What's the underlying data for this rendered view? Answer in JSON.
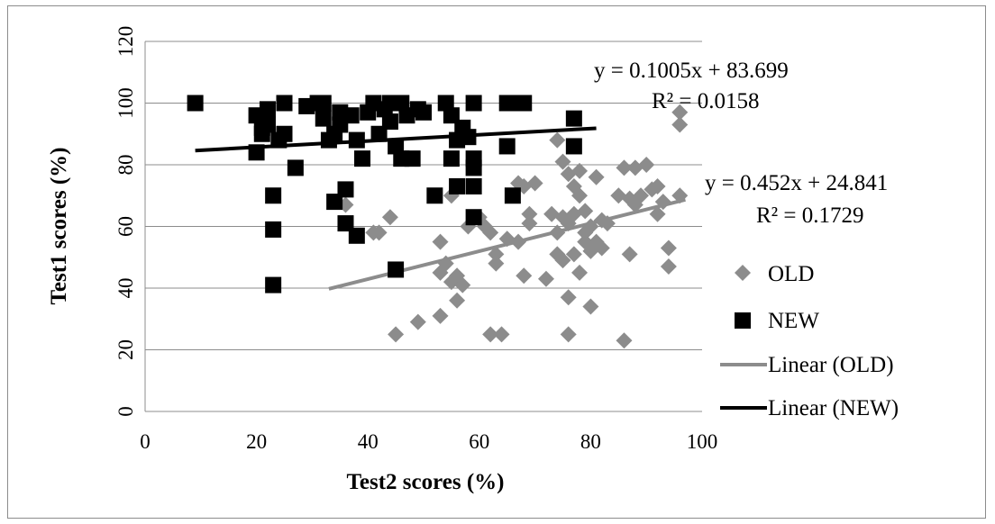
{
  "chart_data": {
    "type": "scatter",
    "xlabel": "Test2 scores (%)",
    "ylabel": "Test1 scores (%)",
    "xlim": [
      0,
      100
    ],
    "ylim": [
      0,
      120
    ],
    "x_ticks": [
      "0",
      "20",
      "40",
      "60",
      "80",
      "100"
    ],
    "y_ticks": [
      "0",
      "20",
      "40",
      "60",
      "80",
      "100",
      "120"
    ],
    "grid": "horizontal",
    "legend_position": "right",
    "series": [
      {
        "name": "OLD",
        "marker": "diamond",
        "color": "#8c8c8c",
        "points": [
          [
            36,
            67
          ],
          [
            41,
            58
          ],
          [
            42,
            58
          ],
          [
            44,
            63
          ],
          [
            45,
            25
          ],
          [
            49,
            29
          ],
          [
            53,
            55
          ],
          [
            53,
            31
          ],
          [
            53,
            45
          ],
          [
            54,
            48
          ],
          [
            55,
            42
          ],
          [
            55,
            70
          ],
          [
            56,
            44
          ],
          [
            56,
            36
          ],
          [
            57,
            41
          ],
          [
            58,
            60
          ],
          [
            60,
            63
          ],
          [
            61,
            60
          ],
          [
            62,
            58
          ],
          [
            62,
            25
          ],
          [
            63,
            48
          ],
          [
            63,
            51
          ],
          [
            64,
            25
          ],
          [
            65,
            56
          ],
          [
            67,
            55
          ],
          [
            67,
            74
          ],
          [
            68,
            44
          ],
          [
            68,
            73
          ],
          [
            69,
            64
          ],
          [
            69,
            61
          ],
          [
            70,
            74
          ],
          [
            72,
            43
          ],
          [
            73,
            64
          ],
          [
            74,
            51
          ],
          [
            74,
            58
          ],
          [
            74,
            88
          ],
          [
            75,
            63
          ],
          [
            75,
            49
          ],
          [
            75,
            81
          ],
          [
            76,
            77
          ],
          [
            76,
            61
          ],
          [
            76,
            37
          ],
          [
            76,
            25
          ],
          [
            77,
            73
          ],
          [
            77,
            51
          ],
          [
            77,
            64
          ],
          [
            78,
            45
          ],
          [
            78,
            78
          ],
          [
            78,
            70
          ],
          [
            79,
            58
          ],
          [
            79,
            55
          ],
          [
            79,
            65
          ],
          [
            80,
            60
          ],
          [
            80,
            52
          ],
          [
            80,
            34
          ],
          [
            81,
            76
          ],
          [
            81,
            55
          ],
          [
            82,
            62
          ],
          [
            82,
            53
          ],
          [
            83,
            61
          ],
          [
            85,
            70
          ],
          [
            86,
            23
          ],
          [
            86,
            79
          ],
          [
            87,
            51
          ],
          [
            87,
            69
          ],
          [
            88,
            67
          ],
          [
            88,
            79
          ],
          [
            89,
            70
          ],
          [
            90,
            80
          ],
          [
            91,
            72
          ],
          [
            92,
            64
          ],
          [
            92,
            73
          ],
          [
            93,
            68
          ],
          [
            94,
            47
          ],
          [
            94,
            53
          ],
          [
            96,
            97
          ],
          [
            96,
            93
          ],
          [
            96,
            70
          ]
        ]
      },
      {
        "name": "NEW",
        "marker": "square",
        "color": "#000000",
        "points": [
          [
            9,
            100
          ],
          [
            20,
            84
          ],
          [
            20,
            96
          ],
          [
            21,
            90
          ],
          [
            21,
            92
          ],
          [
            22,
            98
          ],
          [
            22,
            93
          ],
          [
            23,
            70
          ],
          [
            23,
            59
          ],
          [
            23,
            41
          ],
          [
            24,
            88
          ],
          [
            25,
            100
          ],
          [
            25,
            90
          ],
          [
            27,
            79
          ],
          [
            29,
            99
          ],
          [
            31,
            100
          ],
          [
            32,
            100
          ],
          [
            32,
            95
          ],
          [
            33,
            88
          ],
          [
            34,
            68
          ],
          [
            34,
            90
          ],
          [
            35,
            93
          ],
          [
            35,
            97
          ],
          [
            36,
            72
          ],
          [
            36,
            61
          ],
          [
            37,
            96
          ],
          [
            38,
            88
          ],
          [
            38,
            57
          ],
          [
            39,
            82
          ],
          [
            40,
            97
          ],
          [
            41,
            100
          ],
          [
            42,
            90
          ],
          [
            43,
            98
          ],
          [
            44,
            100
          ],
          [
            44,
            94
          ],
          [
            45,
            86
          ],
          [
            45,
            46
          ],
          [
            46,
            100
          ],
          [
            46,
            82
          ],
          [
            47,
            96
          ],
          [
            48,
            82
          ],
          [
            49,
            98
          ],
          [
            50,
            97
          ],
          [
            52,
            70
          ],
          [
            54,
            100
          ],
          [
            55,
            96
          ],
          [
            55,
            82
          ],
          [
            56,
            73
          ],
          [
            56,
            88
          ],
          [
            57,
            92
          ],
          [
            58,
            89
          ],
          [
            59,
            100
          ],
          [
            59,
            82
          ],
          [
            59,
            79
          ],
          [
            59,
            73
          ],
          [
            59,
            63
          ],
          [
            65,
            100
          ],
          [
            65,
            86
          ],
          [
            66,
            70
          ],
          [
            67,
            100
          ],
          [
            68,
            100
          ],
          [
            77,
            95
          ],
          [
            77,
            86
          ]
        ]
      }
    ],
    "trendlines": [
      {
        "name": "Linear (OLD)",
        "series": "OLD",
        "slope": 0.452,
        "intercept": 24.841,
        "x_range": [
          33,
          97
        ],
        "color": "#8c8c8c",
        "equation": "y = 0.452x + 24.841",
        "r2": "R² = 0.1729"
      },
      {
        "name": "Linear (NEW)",
        "series": "NEW",
        "slope": 0.1005,
        "intercept": 83.699,
        "x_range": [
          9,
          81
        ],
        "color": "#000000",
        "equation": "y = 0.1005x + 83.699",
        "r2": "R² = 0.0158"
      }
    ],
    "legend": [
      "OLD",
      "NEW",
      "Linear (OLD)",
      "Linear (NEW)"
    ]
  }
}
